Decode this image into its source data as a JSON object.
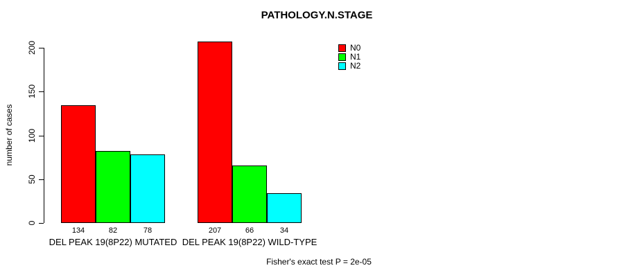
{
  "chart_data": {
    "type": "bar",
    "title": "PATHOLOGY.N.STAGE",
    "ylabel": "number of cases",
    "xlabel": "",
    "categories": [
      "DEL PEAK 19(8P22) MUTATED",
      "DEL PEAK 19(8P22) WILD-TYPE"
    ],
    "series": [
      {
        "name": "N0",
        "color": "#ff0000",
        "values": [
          134,
          207
        ]
      },
      {
        "name": "N1",
        "color": "#00ff00",
        "values": [
          82,
          66
        ]
      },
      {
        "name": "N2",
        "color": "#00ffff",
        "values": [
          78,
          34
        ]
      }
    ],
    "yticks": [
      0,
      50,
      100,
      150,
      200
    ],
    "ylim": [
      0,
      210
    ],
    "grid": false,
    "bar_borders": true,
    "value_labels_shown": true,
    "legend_position": "topright",
    "annotation": "Fisher's exact test P = 2e-05",
    "colors": {
      "N0": "#ff0000",
      "N1": "#00ff00",
      "N2": "#00ffff"
    }
  }
}
